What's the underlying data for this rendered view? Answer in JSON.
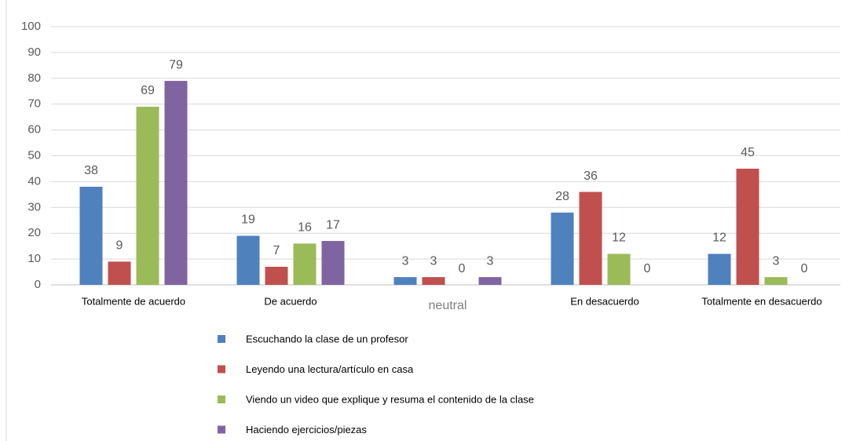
{
  "chart_data": {
    "type": "bar",
    "categories": [
      "Totalmente de acuerdo",
      "De acuerdo",
      "neutral",
      "En desacuerdo",
      "Totalmente en desacuerdo"
    ],
    "series": [
      {
        "name": "Escuchando la clase de un profesor",
        "color": "#4f81bd",
        "values": [
          38,
          19,
          3,
          28,
          12
        ]
      },
      {
        "name": "Leyendo una lectura/artículo en casa",
        "color": "#c0504d",
        "values": [
          9,
          7,
          3,
          36,
          45
        ]
      },
      {
        "name": "Viendo un video que explique y resuma el contenido de la clase",
        "color": "#9bbb59",
        "values": [
          69,
          16,
          0,
          12,
          3
        ]
      },
      {
        "name": "Haciendo ejercicios/piezas",
        "color": "#8064a2",
        "values": [
          79,
          17,
          3,
          0,
          0
        ]
      }
    ],
    "ylim": [
      0,
      100
    ],
    "yticks": [
      0,
      10,
      20,
      30,
      40,
      50,
      60,
      70,
      80,
      90,
      100
    ],
    "grid": true
  }
}
